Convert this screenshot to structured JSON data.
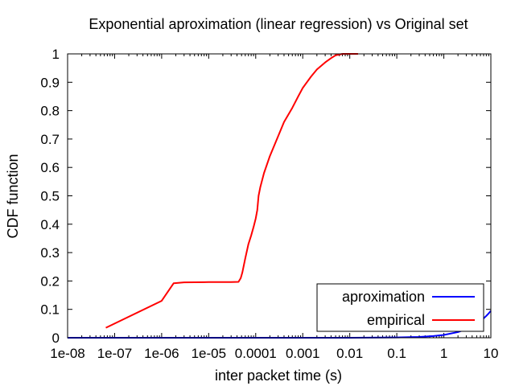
{
  "chart_data": {
    "type": "line",
    "title": "Exponential aproximation (linear regression) vs Original set",
    "xlabel": "inter packet time (s)",
    "ylabel": "CDF function",
    "xscale": "log",
    "xlim": [
      1e-08,
      10
    ],
    "ylim": [
      0,
      1
    ],
    "grid": false,
    "legend_position": "bottom-right",
    "x_ticks": [
      {
        "value": 1e-08,
        "label": "1e-08"
      },
      {
        "value": 1e-07,
        "label": "1e-07"
      },
      {
        "value": 1e-06,
        "label": "1e-06"
      },
      {
        "value": 1e-05,
        "label": "1e-05"
      },
      {
        "value": 0.0001,
        "label": "0.0001"
      },
      {
        "value": 0.001,
        "label": "0.001"
      },
      {
        "value": 0.01,
        "label": "0.01"
      },
      {
        "value": 0.1,
        "label": "0.1"
      },
      {
        "value": 1,
        "label": "1"
      },
      {
        "value": 10,
        "label": "10"
      }
    ],
    "y_ticks": [
      {
        "value": 0,
        "label": "0"
      },
      {
        "value": 0.1,
        "label": "0.1"
      },
      {
        "value": 0.2,
        "label": "0.2"
      },
      {
        "value": 0.3,
        "label": "0.3"
      },
      {
        "value": 0.4,
        "label": "0.4"
      },
      {
        "value": 0.5,
        "label": "0.5"
      },
      {
        "value": 0.6,
        "label": "0.6"
      },
      {
        "value": 0.7,
        "label": "0.7"
      },
      {
        "value": 0.8,
        "label": "0.8"
      },
      {
        "value": 0.9,
        "label": "0.9"
      },
      {
        "value": 1,
        "label": "1"
      }
    ],
    "series": [
      {
        "name": "aproximation",
        "color": "#0000ff",
        "points": [
          [
            1e-08,
            0
          ],
          [
            0.01,
            0
          ],
          [
            0.1,
            0.001
          ],
          [
            0.3,
            0.003
          ],
          [
            0.6,
            0.006
          ],
          [
            1,
            0.01
          ],
          [
            2,
            0.02
          ],
          [
            3,
            0.03
          ],
          [
            4,
            0.04
          ],
          [
            5,
            0.05
          ],
          [
            6,
            0.06
          ],
          [
            7,
            0.068
          ],
          [
            8,
            0.077
          ],
          [
            9,
            0.086
          ],
          [
            10,
            0.095
          ]
        ]
      },
      {
        "name": "empirical",
        "color": "#ff0000",
        "points": [
          [
            6.5e-08,
            0.035
          ],
          [
            1e-06,
            0.13
          ],
          [
            1.8e-06,
            0.192
          ],
          [
            3e-06,
            0.195
          ],
          [
            1e-05,
            0.196
          ],
          [
            3e-05,
            0.196
          ],
          [
            4.3e-05,
            0.197
          ],
          [
            4.8e-05,
            0.21
          ],
          [
            5.2e-05,
            0.23
          ],
          [
            6e-05,
            0.28
          ],
          [
            7e-05,
            0.33
          ],
          [
            8e-05,
            0.36
          ],
          [
            9e-05,
            0.39
          ],
          [
            0.0001,
            0.42
          ],
          [
            0.000108,
            0.45
          ],
          [
            0.000115,
            0.5
          ],
          [
            0.000125,
            0.53
          ],
          [
            0.00015,
            0.58
          ],
          [
            0.0002,
            0.64
          ],
          [
            0.0003,
            0.71
          ],
          [
            0.0004,
            0.76
          ],
          [
            0.0006,
            0.81
          ],
          [
            0.0008,
            0.85
          ],
          [
            0.001,
            0.88
          ],
          [
            0.0015,
            0.92
          ],
          [
            0.002,
            0.945
          ],
          [
            0.003,
            0.97
          ],
          [
            0.004,
            0.985
          ],
          [
            0.005,
            0.995
          ],
          [
            0.007,
            1.0
          ],
          [
            0.015,
            1.0
          ]
        ]
      }
    ]
  }
}
